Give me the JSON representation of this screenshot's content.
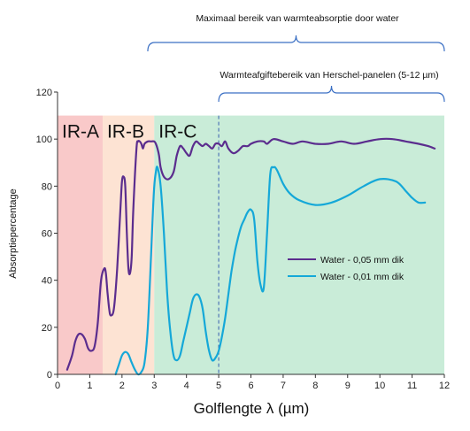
{
  "chart_data": {
    "type": "line",
    "title": "",
    "xlabel": "Golflengte λ (µm)",
    "ylabel": "Absorptiepercentage",
    "xlim": [
      0,
      12
    ],
    "ylim": [
      0,
      120
    ],
    "xticks": [
      "0",
      "1",
      "2",
      "3",
      "4",
      "5",
      "6",
      "7",
      "8",
      "9",
      "10",
      "11",
      "12"
    ],
    "yticks": [
      "0",
      "20",
      "40",
      "60",
      "80",
      "100",
      "120"
    ],
    "legend_position": "center-right",
    "bands": [
      {
        "label": "IR-A",
        "x_start": 0,
        "x_end": 1.4,
        "y_top": 110,
        "color": "#f9c9c9"
      },
      {
        "label": "IR-B",
        "x_start": 1.4,
        "x_end": 3.0,
        "y_top": 110,
        "color": "#fde3d3"
      },
      {
        "label": "IR-C",
        "x_start": 3.0,
        "x_end": 12.0,
        "y_top": 110,
        "color": "#c9ecd8"
      }
    ],
    "annotations": [
      {
        "text": "Maximaal bereik van warmteabsorptie door water",
        "x_start": 2.8,
        "x_end": 12.0
      },
      {
        "text": "Warmteafgiftebereik van Herschel-panelen (5-12 µm)",
        "x_start": 5.0,
        "x_end": 12.0
      }
    ],
    "vline_x": 5.0,
    "series": [
      {
        "name": "Water - 0,05 mm dik",
        "color": "#5b2d8e",
        "x": [
          0.3,
          0.45,
          0.55,
          0.65,
          0.75,
          0.85,
          0.95,
          1.05,
          1.15,
          1.25,
          1.35,
          1.45,
          1.5,
          1.55,
          1.6,
          1.65,
          1.75,
          1.85,
          1.95,
          2.0,
          2.05,
          2.1,
          2.15,
          2.2,
          2.25,
          2.3,
          2.35,
          2.45,
          2.5,
          2.55,
          2.6,
          2.65,
          2.7,
          2.8,
          2.9,
          3.0,
          3.05,
          3.1,
          3.15,
          3.2,
          3.3,
          3.45,
          3.6,
          3.7,
          3.8,
          3.9,
          4.0,
          4.1,
          4.2,
          4.3,
          4.4,
          4.5,
          4.6,
          4.7,
          4.8,
          4.9,
          5.0,
          5.1,
          5.2,
          5.3,
          5.45,
          5.6,
          5.75,
          5.9,
          6.0,
          6.2,
          6.4,
          6.5,
          6.7,
          7.0,
          7.3,
          7.6,
          8.0,
          8.4,
          8.8,
          9.2,
          9.6,
          10.0,
          10.4,
          10.8,
          11.2,
          11.5,
          11.7
        ],
        "y": [
          2,
          8,
          14,
          17,
          17,
          15,
          11,
          10,
          12,
          22,
          40,
          45,
          43,
          35,
          28,
          25,
          28,
          45,
          70,
          82,
          84,
          80,
          60,
          45,
          43,
          50,
          70,
          96,
          99,
          99,
          98,
          96,
          98,
          99,
          99,
          99,
          98,
          96,
          93,
          88,
          84,
          83,
          86,
          93,
          97,
          96,
          94,
          93,
          97,
          99,
          98,
          97,
          98,
          97,
          96,
          98,
          98,
          97,
          99,
          96,
          94,
          95,
          97,
          97,
          98,
          99,
          99,
          98,
          100,
          99,
          98,
          99,
          98,
          98,
          99,
          98,
          99,
          100,
          100,
          99,
          98,
          97,
          96
        ]
      },
      {
        "name": "Water - 0,01 mm dik",
        "color": "#15a8d8",
        "x": [
          1.8,
          1.9,
          2.0,
          2.1,
          2.2,
          2.3,
          2.4,
          2.5,
          2.6,
          2.7,
          2.8,
          2.9,
          2.95,
          3.0,
          3.05,
          3.1,
          3.2,
          3.3,
          3.4,
          3.5,
          3.6,
          3.7,
          3.8,
          3.9,
          4.0,
          4.1,
          4.2,
          4.3,
          4.4,
          4.5,
          4.6,
          4.7,
          4.8,
          4.9,
          5.0,
          5.1,
          5.2,
          5.3,
          5.4,
          5.5,
          5.6,
          5.7,
          5.8,
          5.9,
          6.0,
          6.1,
          6.2,
          6.3,
          6.4,
          6.5,
          6.6,
          6.7,
          6.8,
          7.0,
          7.2,
          7.5,
          8.0,
          8.5,
          9.0,
          9.5,
          10.0,
          10.5,
          10.8,
          11.0,
          11.2,
          11.4
        ],
        "y": [
          0,
          4,
          8,
          9.5,
          8.5,
          5,
          2,
          0,
          1,
          5,
          20,
          50,
          66,
          80,
          86,
          88,
          80,
          60,
          35,
          18,
          8,
          6,
          8,
          14,
          20,
          26,
          32,
          34,
          33,
          28,
          18,
          10,
          6,
          7,
          10,
          16,
          24,
          34,
          44,
          52,
          58,
          63,
          66,
          69,
          70,
          66,
          48,
          38,
          37,
          60,
          85,
          88,
          87,
          81,
          77,
          74,
          72,
          73,
          76,
          80,
          83,
          82,
          78,
          75,
          73,
          73
        ]
      }
    ]
  }
}
